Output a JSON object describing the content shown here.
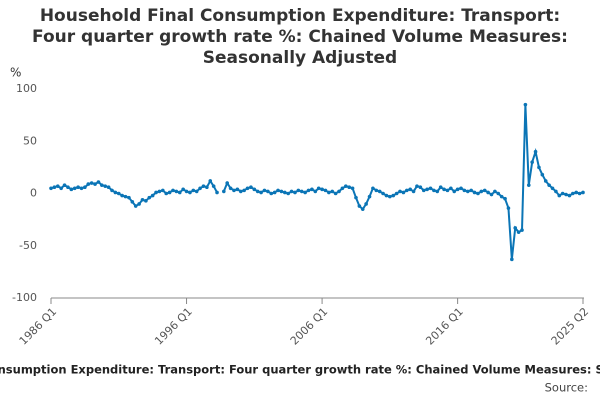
{
  "chart_data": {
    "type": "line",
    "title": "Household Final Consumption Expenditure: Transport: Four quarter growth rate %: Chained Volume Measures: Seasonally Adjusted",
    "y_label": "%",
    "source": "Source:",
    "categories": [
      "1986 Q1",
      null,
      null,
      null,
      null,
      null,
      null,
      null,
      null,
      null,
      null,
      null,
      null,
      null,
      null,
      null,
      null,
      null,
      null,
      null,
      null,
      null,
      null,
      null,
      null,
      null,
      null,
      null,
      null,
      null,
      null,
      null,
      null,
      null,
      null,
      null,
      null,
      null,
      null,
      null,
      "1996 Q1",
      null,
      null,
      null,
      null,
      null,
      null,
      null,
      null,
      null,
      null,
      null,
      null,
      null,
      null,
      null,
      null,
      null,
      null,
      null,
      null,
      null,
      null,
      null,
      null,
      null,
      null,
      null,
      null,
      null,
      null,
      null,
      null,
      null,
      null,
      null,
      null,
      null,
      null,
      null,
      "2006 Q1",
      null,
      null,
      null,
      null,
      null,
      null,
      null,
      null,
      null,
      null,
      null,
      null,
      null,
      null,
      null,
      null,
      null,
      null,
      null,
      null,
      null,
      null,
      null,
      null,
      null,
      null,
      null,
      null,
      null,
      null,
      null,
      null,
      null,
      null,
      null,
      null,
      null,
      null,
      null,
      "2016 Q1",
      null,
      null,
      null,
      null,
      null,
      null,
      null,
      null,
      null,
      null,
      null,
      null,
      null,
      null,
      null,
      null,
      null,
      null,
      null,
      null,
      null,
      null,
      null,
      null,
      null,
      null,
      null,
      null,
      null,
      null,
      null,
      null,
      null,
      null,
      null,
      null,
      "2025 Q2"
    ],
    "series": [
      {
        "name": "Household Final Consumption Expenditure: Transport: Four quarter growth rate %: Chained Volume Measures: Seasonally Adjusted",
        "color": "#0b75b6",
        "values": [
          5,
          6,
          7,
          5,
          8,
          6,
          4,
          5,
          6,
          5,
          6,
          9,
          10,
          9,
          11,
          8,
          7,
          6,
          3,
          1,
          0,
          -2,
          -3,
          -4,
          -8,
          -12,
          -10,
          -6,
          -7,
          -4,
          -2,
          1,
          2,
          3,
          0,
          1,
          3,
          2,
          1,
          4,
          2,
          1,
          3,
          2,
          5,
          7,
          6,
          12,
          7,
          1,
          null,
          2,
          10,
          5,
          3,
          4,
          2,
          3,
          5,
          6,
          4,
          2,
          1,
          3,
          2,
          0,
          1,
          3,
          2,
          1,
          0,
          2,
          1,
          3,
          2,
          1,
          3,
          4,
          2,
          5,
          4,
          3,
          1,
          2,
          0,
          2,
          5,
          7,
          6,
          5,
          -4,
          -12,
          -15,
          -10,
          -3,
          5,
          3,
          2,
          0,
          -2,
          -3,
          -2,
          0,
          2,
          1,
          3,
          4,
          2,
          7,
          6,
          3,
          4,
          5,
          3,
          2,
          6,
          4,
          3,
          5,
          2,
          4,
          5,
          3,
          2,
          3,
          1,
          0,
          2,
          3,
          1,
          -1,
          2,
          0,
          -3,
          -5,
          -14,
          -63,
          -33,
          -37,
          -35,
          85,
          8,
          30,
          40,
          25,
          18,
          12,
          8,
          5,
          2,
          -2,
          0,
          -1,
          -2,
          0,
          1,
          0,
          1
        ]
      }
    ],
    "ylim": [
      -100,
      100
    ],
    "yticks": [
      -100,
      -50,
      0,
      50,
      100
    ],
    "grid": false
  }
}
